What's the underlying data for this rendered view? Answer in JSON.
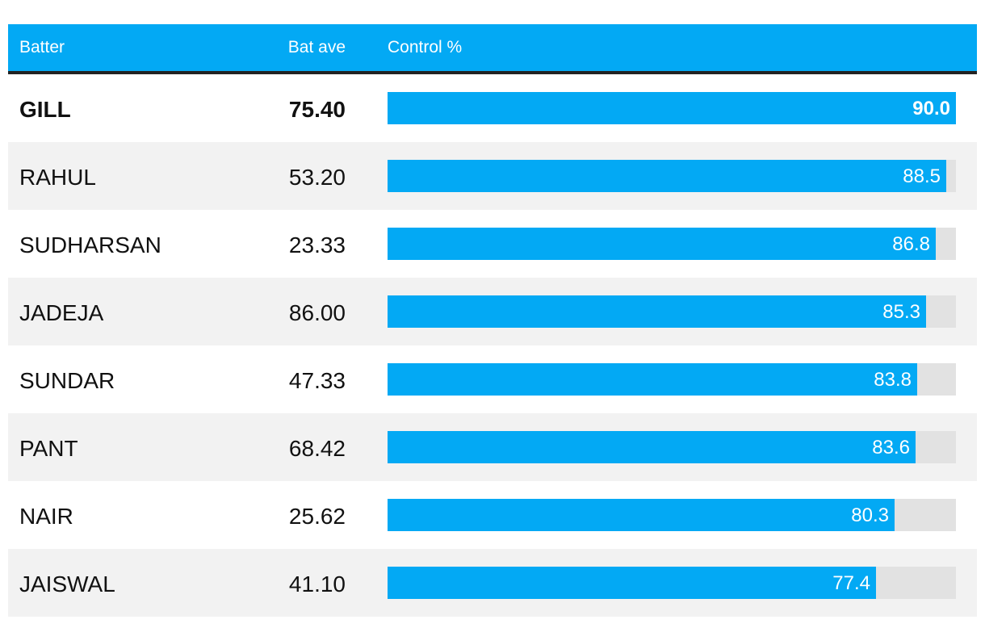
{
  "colors": {
    "accent": "#03a9f4",
    "header_rule": "#222222",
    "track": "#e2e2e2",
    "alt_row": "#f2f2f2"
  },
  "chart_data": {
    "type": "table",
    "columns": [
      "Batter",
      "Bat ave",
      "Control %"
    ],
    "xlim": [
      0,
      90
    ],
    "rows": [
      {
        "batter": "GILL",
        "bat_ave": "75.40",
        "control": 90.0,
        "control_label": "90.0",
        "highlight": true
      },
      {
        "batter": "RAHUL",
        "bat_ave": "53.20",
        "control": 88.5,
        "control_label": "88.5"
      },
      {
        "batter": "SUDHARSAN",
        "bat_ave": "23.33",
        "control": 86.8,
        "control_label": "86.8"
      },
      {
        "batter": "JADEJA",
        "bat_ave": "86.00",
        "control": 85.3,
        "control_label": "85.3"
      },
      {
        "batter": "SUNDAR",
        "bat_ave": "47.33",
        "control": 83.8,
        "control_label": "83.8"
      },
      {
        "batter": "PANT",
        "bat_ave": "68.42",
        "control": 83.6,
        "control_label": "83.6"
      },
      {
        "batter": "NAIR",
        "bat_ave": "25.62",
        "control": 80.3,
        "control_label": "80.3"
      },
      {
        "batter": "JAISWAL",
        "bat_ave": "41.10",
        "control": 77.4,
        "control_label": "77.4"
      }
    ]
  }
}
